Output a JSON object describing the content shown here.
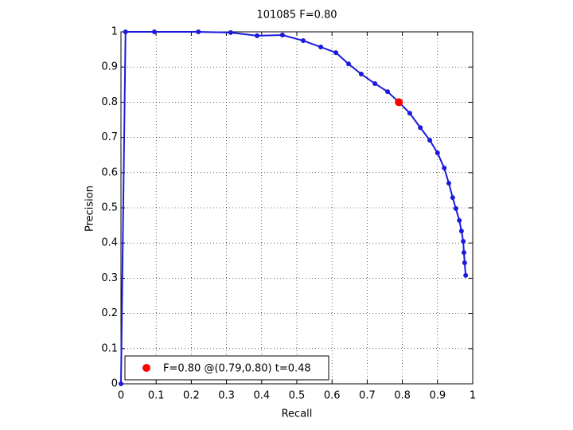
{
  "chart_data": {
    "type": "line",
    "title": "101085 F=0.80",
    "x_label": "Recall",
    "y_label": "Precision",
    "xlim": [
      0,
      1
    ],
    "ylim": [
      0,
      1
    ],
    "xticks": [
      0,
      0.1,
      0.2,
      0.3,
      0.4,
      0.5,
      0.6,
      0.7,
      0.8,
      0.9,
      1
    ],
    "yticks": [
      0,
      0.1,
      0.2,
      0.3,
      0.4,
      0.5,
      0.6,
      0.7,
      0.8,
      0.9,
      1
    ],
    "grid": true,
    "legend": "lower left",
    "series": [
      {
        "color": "#1a1adc",
        "x": [
          0,
          0.013,
          0.095,
          0.22,
          0.312,
          0.387,
          0.459,
          0.518,
          0.568,
          0.611,
          0.647,
          0.683,
          0.722,
          0.758,
          0.787,
          0.821,
          0.851,
          0.878,
          0.9,
          0.919,
          0.932,
          0.943,
          0.952,
          0.962,
          0.968,
          0.973,
          0.975,
          0.977,
          0.98
        ],
        "values": [
          0,
          1,
          1,
          1,
          0.998,
          0.989,
          0.991,
          0.975,
          0.957,
          0.941,
          0.909,
          0.88,
          0.853,
          0.83,
          0.803,
          0.769,
          0.728,
          0.692,
          0.656,
          0.613,
          0.57,
          0.529,
          0.498,
          0.464,
          0.434,
          0.405,
          0.373,
          0.344,
          0.308
        ]
      },
      {
        "name": "F=0.80 @(0.79,0.80) t=0.48",
        "color": "#ff0000",
        "x": [
          0.79
        ],
        "values": [
          0.8
        ]
      }
    ]
  }
}
